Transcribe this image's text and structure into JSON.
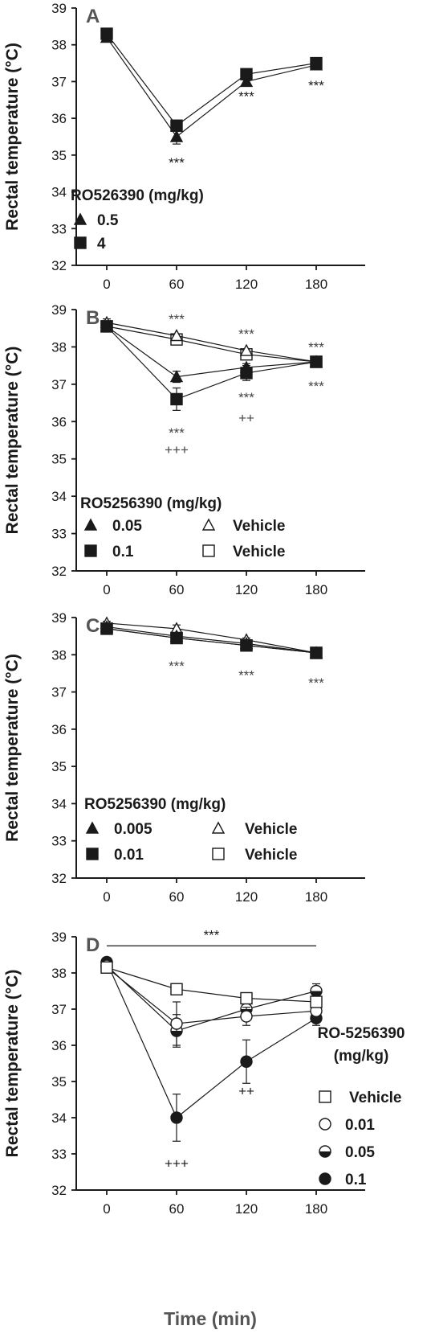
{
  "figure": {
    "xlabel": "Time (min)"
  },
  "chart_data": [
    {
      "panel": "A",
      "type": "line",
      "ylabel": "Rectal temperature (°C)",
      "x": [
        0,
        60,
        120,
        180
      ],
      "xticks": [
        "0",
        "60",
        "120",
        "180"
      ],
      "yticks": [
        "32",
        "33",
        "34",
        "35",
        "36",
        "37",
        "38",
        "39"
      ],
      "ylim": [
        32,
        39
      ],
      "legend_title": "RO526390 (mg/kg)",
      "legend_placement": "bottom-left",
      "series": [
        {
          "name": "0.5",
          "marker": "triangle-filled",
          "values": [
            38.2,
            35.5,
            37.0,
            37.45
          ],
          "errors": [
            0.1,
            0.2,
            0.1,
            0.1
          ]
        },
        {
          "name": "4",
          "marker": "square-filled",
          "values": [
            38.3,
            35.8,
            37.2,
            37.5
          ],
          "errors": [
            0.1,
            0.1,
            0.1,
            0.1
          ]
        }
      ],
      "annotations": [
        {
          "x": 60,
          "y": 34.8,
          "text": "***"
        },
        {
          "x": 120,
          "y": 36.6,
          "text": "***"
        },
        {
          "x": 180,
          "y": 36.9,
          "text": "***"
        }
      ]
    },
    {
      "panel": "B",
      "type": "line",
      "ylabel": "Rectal temperature (°C)",
      "x": [
        0,
        60,
        120,
        180
      ],
      "xticks": [
        "0",
        "60",
        "120",
        "180"
      ],
      "yticks": [
        "32",
        "33",
        "34",
        "35",
        "36",
        "37",
        "38",
        "39"
      ],
      "ylim": [
        32,
        39
      ],
      "legend_title": "RO5256390 (mg/kg)",
      "legend_placement": "bottom",
      "series": [
        {
          "name": "0.05",
          "marker": "triangle-filled",
          "values": [
            38.55,
            37.2,
            37.45,
            37.6
          ],
          "errors": [
            0.1,
            0.15,
            0.1,
            0.1
          ]
        },
        {
          "name": "0.1",
          "marker": "square-filled",
          "values": [
            38.55,
            36.6,
            37.3,
            37.6
          ],
          "errors": [
            0.1,
            0.3,
            0.2,
            0.1
          ]
        },
        {
          "name": "Vehicle",
          "marker": "triangle-open",
          "values": [
            38.65,
            38.3,
            37.9,
            37.6
          ],
          "errors": [
            0.1,
            0.05,
            0.05,
            0.05
          ]
        },
        {
          "name": "Vehicle",
          "marker": "square-open",
          "values": [
            38.55,
            38.2,
            37.8,
            37.6
          ],
          "errors": [
            0.1,
            0.05,
            0.05,
            0.05
          ]
        }
      ],
      "annotations": [
        {
          "x": 60,
          "y": 38.75,
          "text": "***"
        },
        {
          "x": 120,
          "y": 38.35,
          "text": "***"
        },
        {
          "x": 180,
          "y": 38.0,
          "text": "***"
        },
        {
          "x": 120,
          "y": 36.65,
          "text": "***"
        },
        {
          "x": 180,
          "y": 36.95,
          "text": "***"
        },
        {
          "x": 60,
          "y": 35.7,
          "text": "***"
        },
        {
          "x": 60,
          "y": 35.25,
          "text": "+++"
        },
        {
          "x": 120,
          "y": 36.1,
          "text": "++"
        }
      ]
    },
    {
      "panel": "C",
      "type": "line",
      "ylabel": "Rectal temperature (°C)",
      "x": [
        0,
        60,
        120,
        180
      ],
      "xticks": [
        "0",
        "60",
        "120",
        "180"
      ],
      "yticks": [
        "32",
        "33",
        "34",
        "35",
        "36",
        "37",
        "38",
        "39"
      ],
      "ylim": [
        32,
        39
      ],
      "legend_title": "RO5256390 (mg/kg)",
      "legend_placement": "bottom",
      "series": [
        {
          "name": "0.005",
          "marker": "triangle-filled",
          "values": [
            38.75,
            38.5,
            38.3,
            38.05
          ],
          "errors": [
            0.05,
            0.05,
            0.05,
            0.05
          ]
        },
        {
          "name": "0.01",
          "marker": "square-filled",
          "values": [
            38.7,
            38.45,
            38.25,
            38.05
          ],
          "errors": [
            0.05,
            0.05,
            0.05,
            0.05
          ]
        },
        {
          "name": "Vehicle",
          "marker": "triangle-open",
          "values": [
            38.85,
            38.7,
            38.4,
            38.05
          ],
          "errors": [
            0.05,
            0.1,
            0.05,
            0.05
          ]
        },
        {
          "name": "Vehicle",
          "marker": "square-open",
          "values": [
            38.7,
            38.45,
            38.25,
            38.05
          ],
          "errors": [
            0.05,
            0.05,
            0.05,
            0.05
          ]
        }
      ],
      "annotations": [
        {
          "x": 60,
          "y": 37.7,
          "text": "***"
        },
        {
          "x": 120,
          "y": 37.45,
          "text": "***"
        },
        {
          "x": 180,
          "y": 37.25,
          "text": "***"
        }
      ]
    },
    {
      "panel": "D",
      "type": "line",
      "ylabel": "Rectal temperature (°C)",
      "xlabel": "Time (min)",
      "x": [
        0,
        60,
        120,
        180
      ],
      "xticks": [
        "0",
        "60",
        "120",
        "180"
      ],
      "yticks": [
        "32",
        "33",
        "34",
        "35",
        "36",
        "37",
        "38",
        "39"
      ],
      "ylim": [
        32,
        39
      ],
      "legend_title": "RO-5256390 (mg/kg)",
      "legend_placement": "right",
      "series": [
        {
          "name": "Vehicle",
          "marker": "square-open",
          "values": [
            38.15,
            37.55,
            37.3,
            37.2
          ],
          "errors": [
            0.1,
            0.1,
            0.1,
            0.15
          ]
        },
        {
          "name": "0.01",
          "marker": "circle-open",
          "values": [
            38.15,
            36.6,
            36.8,
            36.95
          ],
          "errors": [
            0.1,
            0.6,
            0.25,
            0.2
          ]
        },
        {
          "name": "0.05",
          "marker": "circle-half",
          "values": [
            38.2,
            36.4,
            37.0,
            37.5
          ],
          "errors": [
            0.1,
            0.45,
            0.2,
            0.2
          ]
        },
        {
          "name": "0.1",
          "marker": "circle-filled",
          "values": [
            38.3,
            34.0,
            35.55,
            36.75
          ],
          "errors": [
            0.1,
            0.65,
            0.6,
            0.2
          ]
        }
      ],
      "bracket": {
        "x_from": 0,
        "x_to": 180,
        "y": 38.75,
        "text": "***"
      },
      "annotations": [
        {
          "x": 60,
          "y": 32.75,
          "text": "+++"
        },
        {
          "x": 120,
          "y": 34.75,
          "text": "++"
        }
      ]
    }
  ]
}
